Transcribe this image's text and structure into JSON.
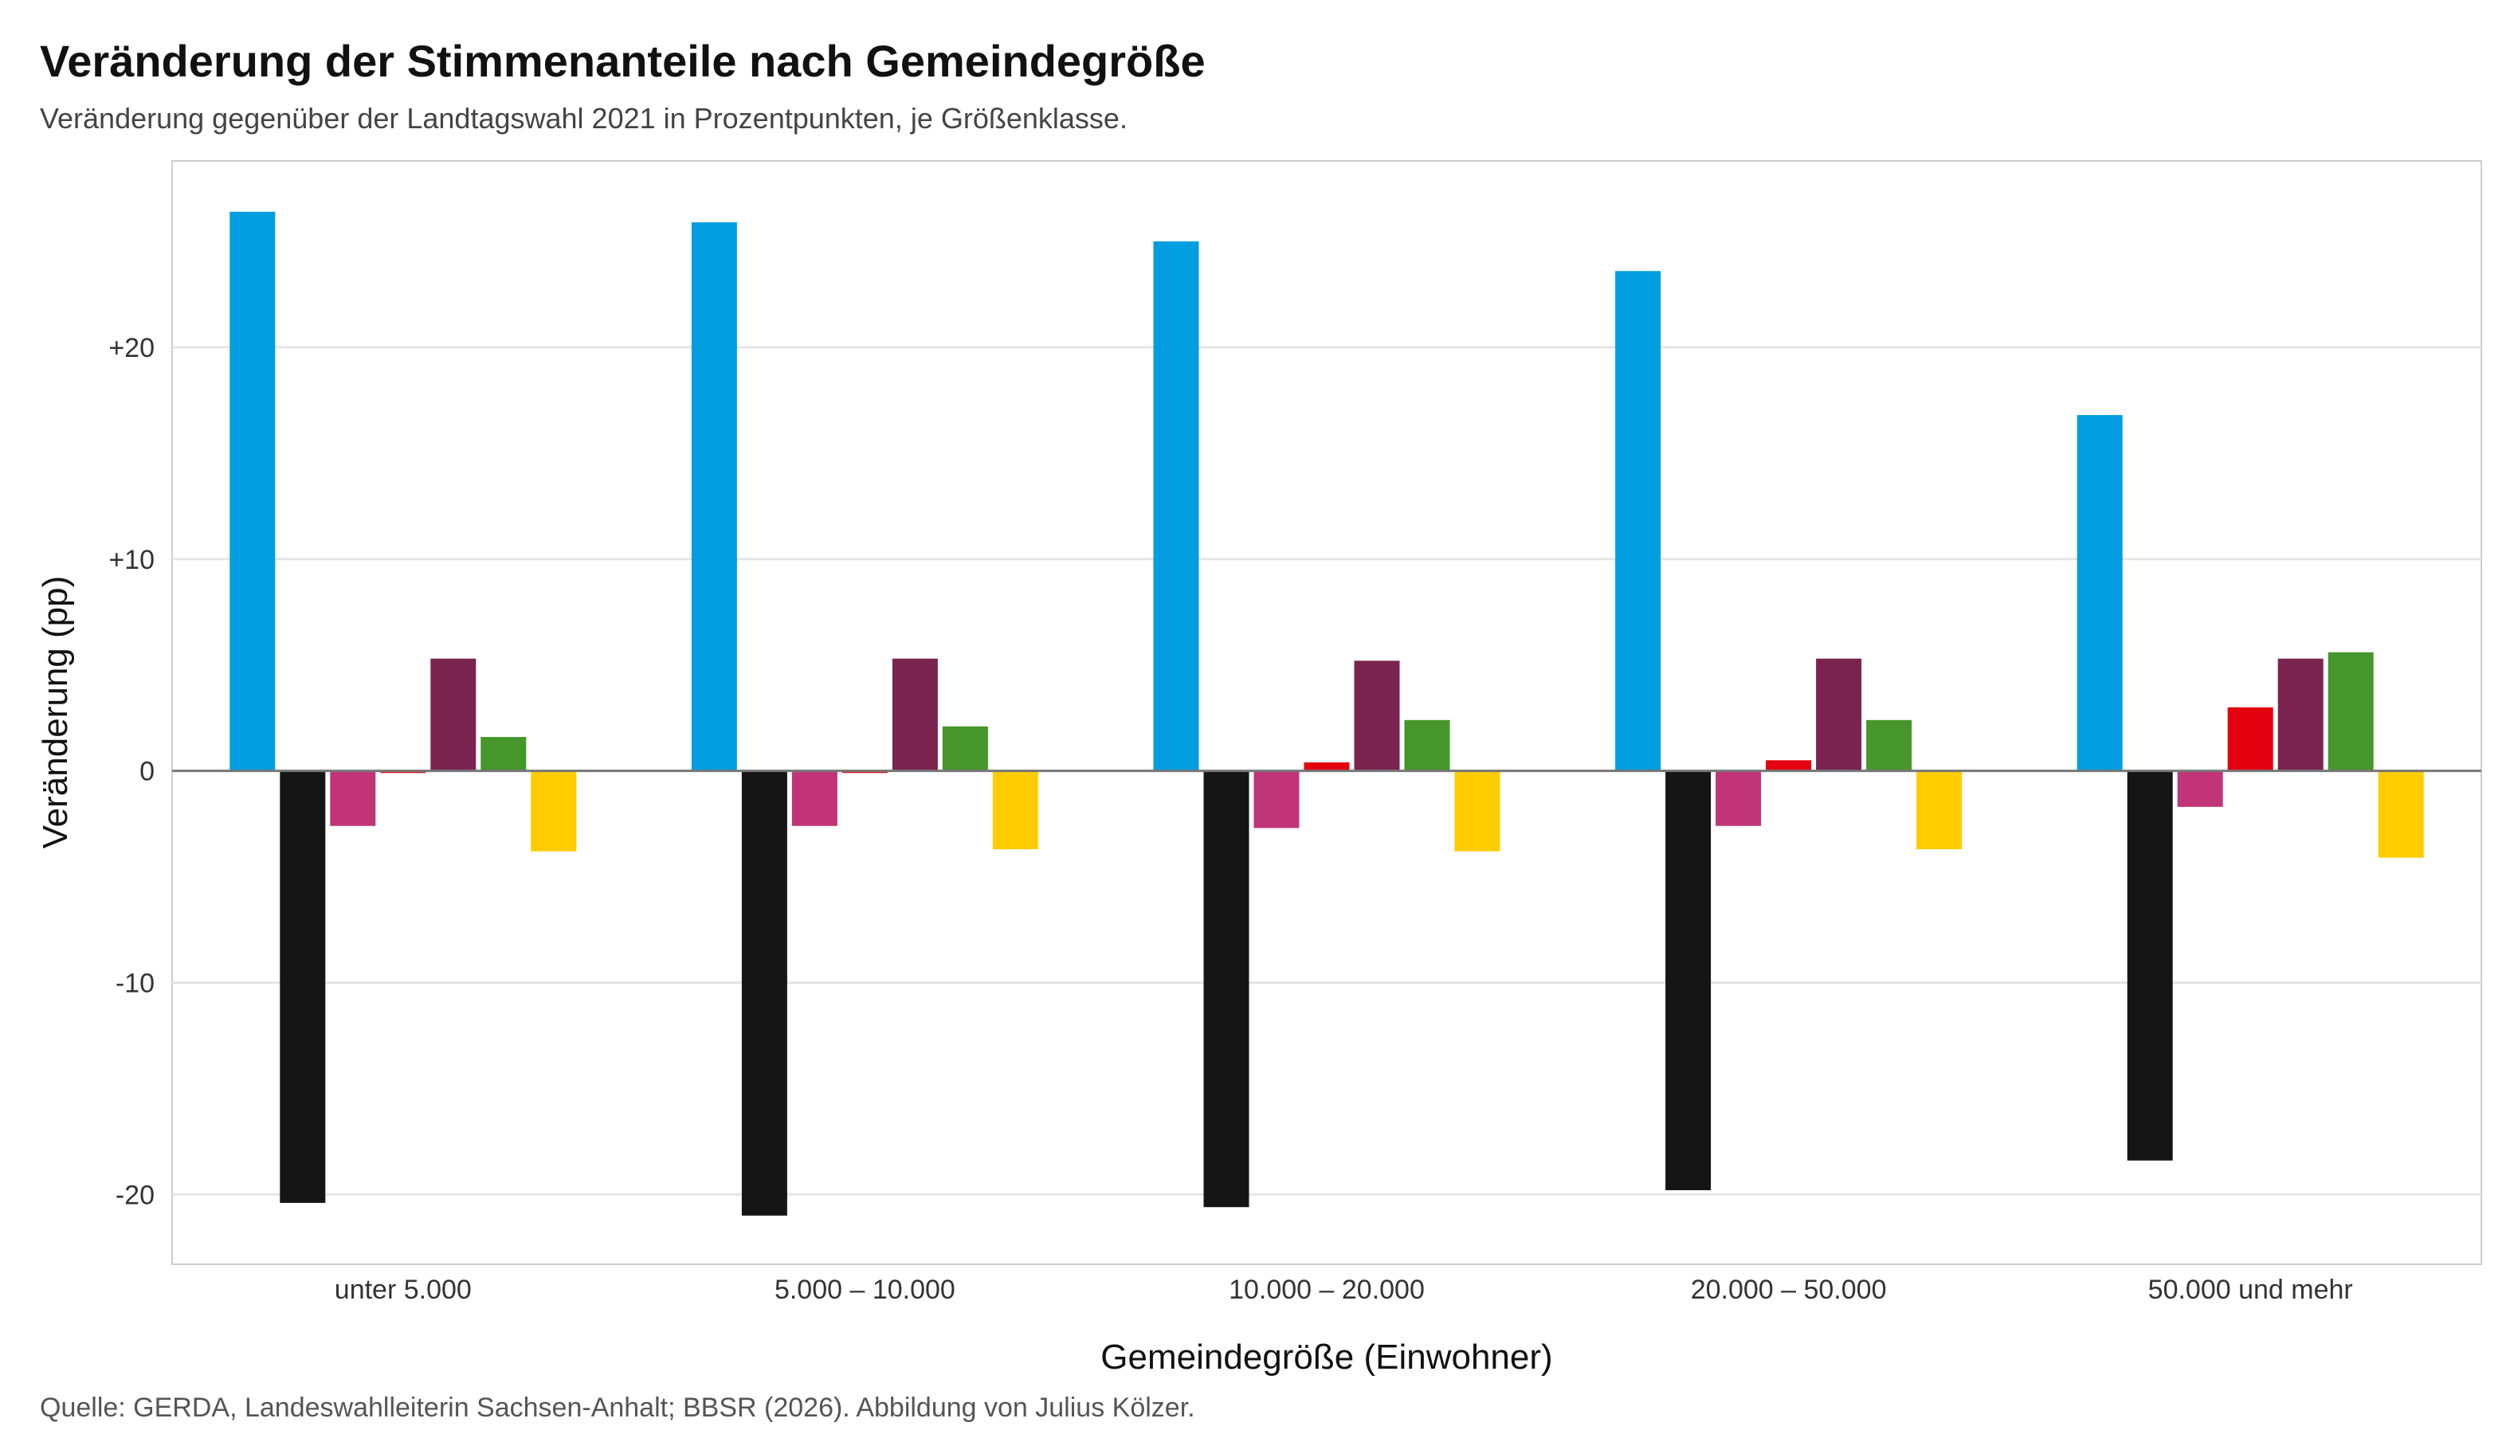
{
  "header": {
    "title": "Veränderung der Stimmenanteile nach Gemeindegröße",
    "subtitle": "Veränderung gegenüber der Landtagswahl 2021 in Prozentpunkten, je Größenklasse."
  },
  "caption": "Quelle: GERDA, Landeswahlleiterin Sachsen-Anhalt; BBSR (2026). Abbildung von Julius Kölzer.",
  "chart_data": {
    "type": "bar",
    "title": "Veränderung der Stimmenanteile nach Gemeindegröße",
    "subtitle": "Veränderung gegenüber der Landtagswahl 2021 in Prozentpunkten, je Größenklasse.",
    "xlabel": "Gemeindegröße (Einwohner)",
    "ylabel": "Veränderung (pp)",
    "ylim": [
      -23.3,
      28.8
    ],
    "yticks": [
      -20,
      -10,
      0,
      10,
      20
    ],
    "ytick_labels": [
      "-20",
      "-10",
      "0",
      "+10",
      "+20"
    ],
    "grid": true,
    "legend": "none",
    "categories": [
      "unter 5.000",
      "5.000 – 10.000",
      "10.000 – 20.000",
      "20.000 – 50.000",
      "50.000 und mehr"
    ],
    "series": [
      {
        "color": "#009ee0",
        "values": [
          26.4,
          25.9,
          25.0,
          23.6,
          16.8
        ]
      },
      {
        "color": "#151515",
        "values": [
          -20.4,
          -21.0,
          -20.6,
          -19.8,
          -18.4
        ]
      },
      {
        "color": "#c13478",
        "values": [
          -2.6,
          -2.6,
          -2.7,
          -2.6,
          -1.7
        ]
      },
      {
        "color": "#e3000f",
        "values": [
          -0.1,
          -0.1,
          0.4,
          0.5,
          3.0
        ]
      },
      {
        "color": "#7b2450",
        "values": [
          5.3,
          5.3,
          5.2,
          5.3,
          5.3
        ]
      },
      {
        "color": "#46962b",
        "values": [
          1.6,
          2.1,
          2.4,
          2.4,
          5.6
        ]
      },
      {
        "color": "#ffcc00",
        "values": [
          -3.8,
          -3.7,
          -3.8,
          -3.7,
          -4.1
        ]
      }
    ]
  }
}
